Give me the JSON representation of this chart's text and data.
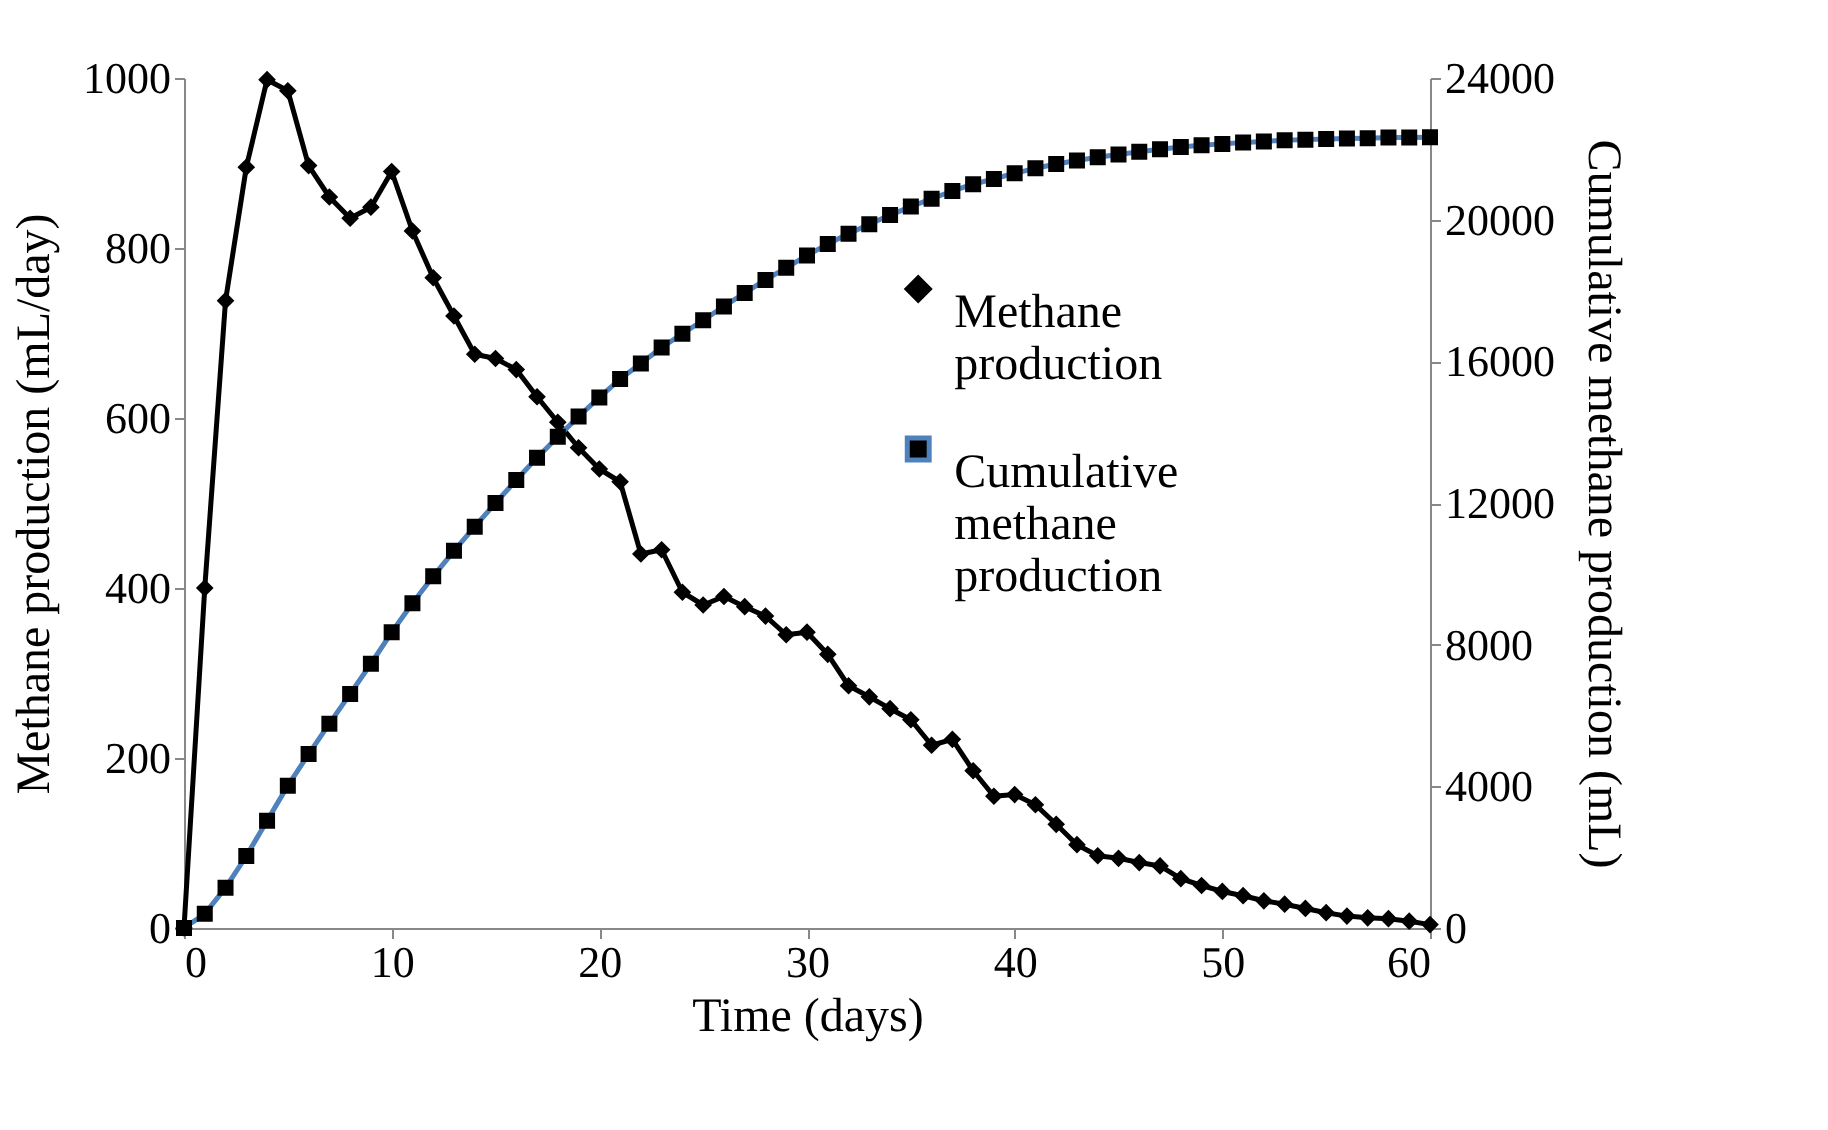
{
  "chart_data": {
    "type": "line",
    "xlabel": "Time (days)",
    "ylabel": "Methane production (mL/day)",
    "y2label": "Cumulative  methane production (mL)",
    "x": [
      0,
      1,
      2,
      3,
      4,
      5,
      6,
      7,
      8,
      9,
      10,
      11,
      12,
      13,
      14,
      15,
      16,
      17,
      18,
      19,
      20,
      21,
      22,
      23,
      24,
      25,
      26,
      27,
      28,
      29,
      30,
      31,
      32,
      33,
      34,
      35,
      36,
      37,
      38,
      39,
      40,
      41,
      42,
      43,
      44,
      45,
      46,
      47,
      48,
      49,
      50,
      51,
      52,
      53,
      54,
      55,
      56,
      57,
      58,
      59,
      60
    ],
    "series": [
      {
        "name": "Methane production",
        "color": "#000000",
        "marker": "diamond",
        "values": [
          0,
          400,
          738,
          895,
          998,
          985,
          897,
          860,
          835,
          848,
          890,
          820,
          765,
          720,
          675,
          670,
          657,
          625,
          595,
          565,
          540,
          525,
          440,
          445,
          395,
          380,
          390,
          378,
          367,
          345,
          348,
          322,
          285,
          272,
          258,
          245,
          215,
          222,
          185,
          155,
          157,
          145,
          122,
          98,
          85,
          82,
          77,
          73,
          58,
          50,
          43,
          38,
          32,
          28,
          23,
          18,
          14,
          12,
          11,
          8,
          4
        ]
      },
      {
        "name": "Cumulative methane production",
        "color": "#4f81bd",
        "marker": "square",
        "axis": "y2",
        "values": [
          0,
          400,
          1140,
          2030,
          3030,
          4020,
          4910,
          5770,
          6610,
          7460,
          8350,
          9170,
          9930,
          10650,
          11330,
          12000,
          12650,
          13280,
          13870,
          14440,
          14980,
          15500,
          15940,
          16390,
          16780,
          17160,
          17550,
          17930,
          18300,
          18640,
          18990,
          19310,
          19600,
          19870,
          20130,
          20370,
          20590,
          20810,
          21000,
          21150,
          21310,
          21450,
          21570,
          21670,
          21760,
          21840,
          21920,
          21990,
          22050,
          22100,
          22140,
          22180,
          22210,
          22240,
          22260,
          22280,
          22290,
          22300,
          22320,
          22320,
          22330
        ]
      }
    ],
    "xlim": [
      0,
      60
    ],
    "xticks": [
      0,
      10,
      20,
      30,
      40,
      50,
      60
    ],
    "ylim": [
      0,
      1000
    ],
    "yticks": [
      0,
      200,
      400,
      600,
      800,
      1000
    ],
    "y2lim": [
      0,
      24000
    ],
    "y2ticks": [
      0,
      4000,
      8000,
      12000,
      16000,
      20000,
      24000
    ],
    "grid": false,
    "legend": "right"
  }
}
